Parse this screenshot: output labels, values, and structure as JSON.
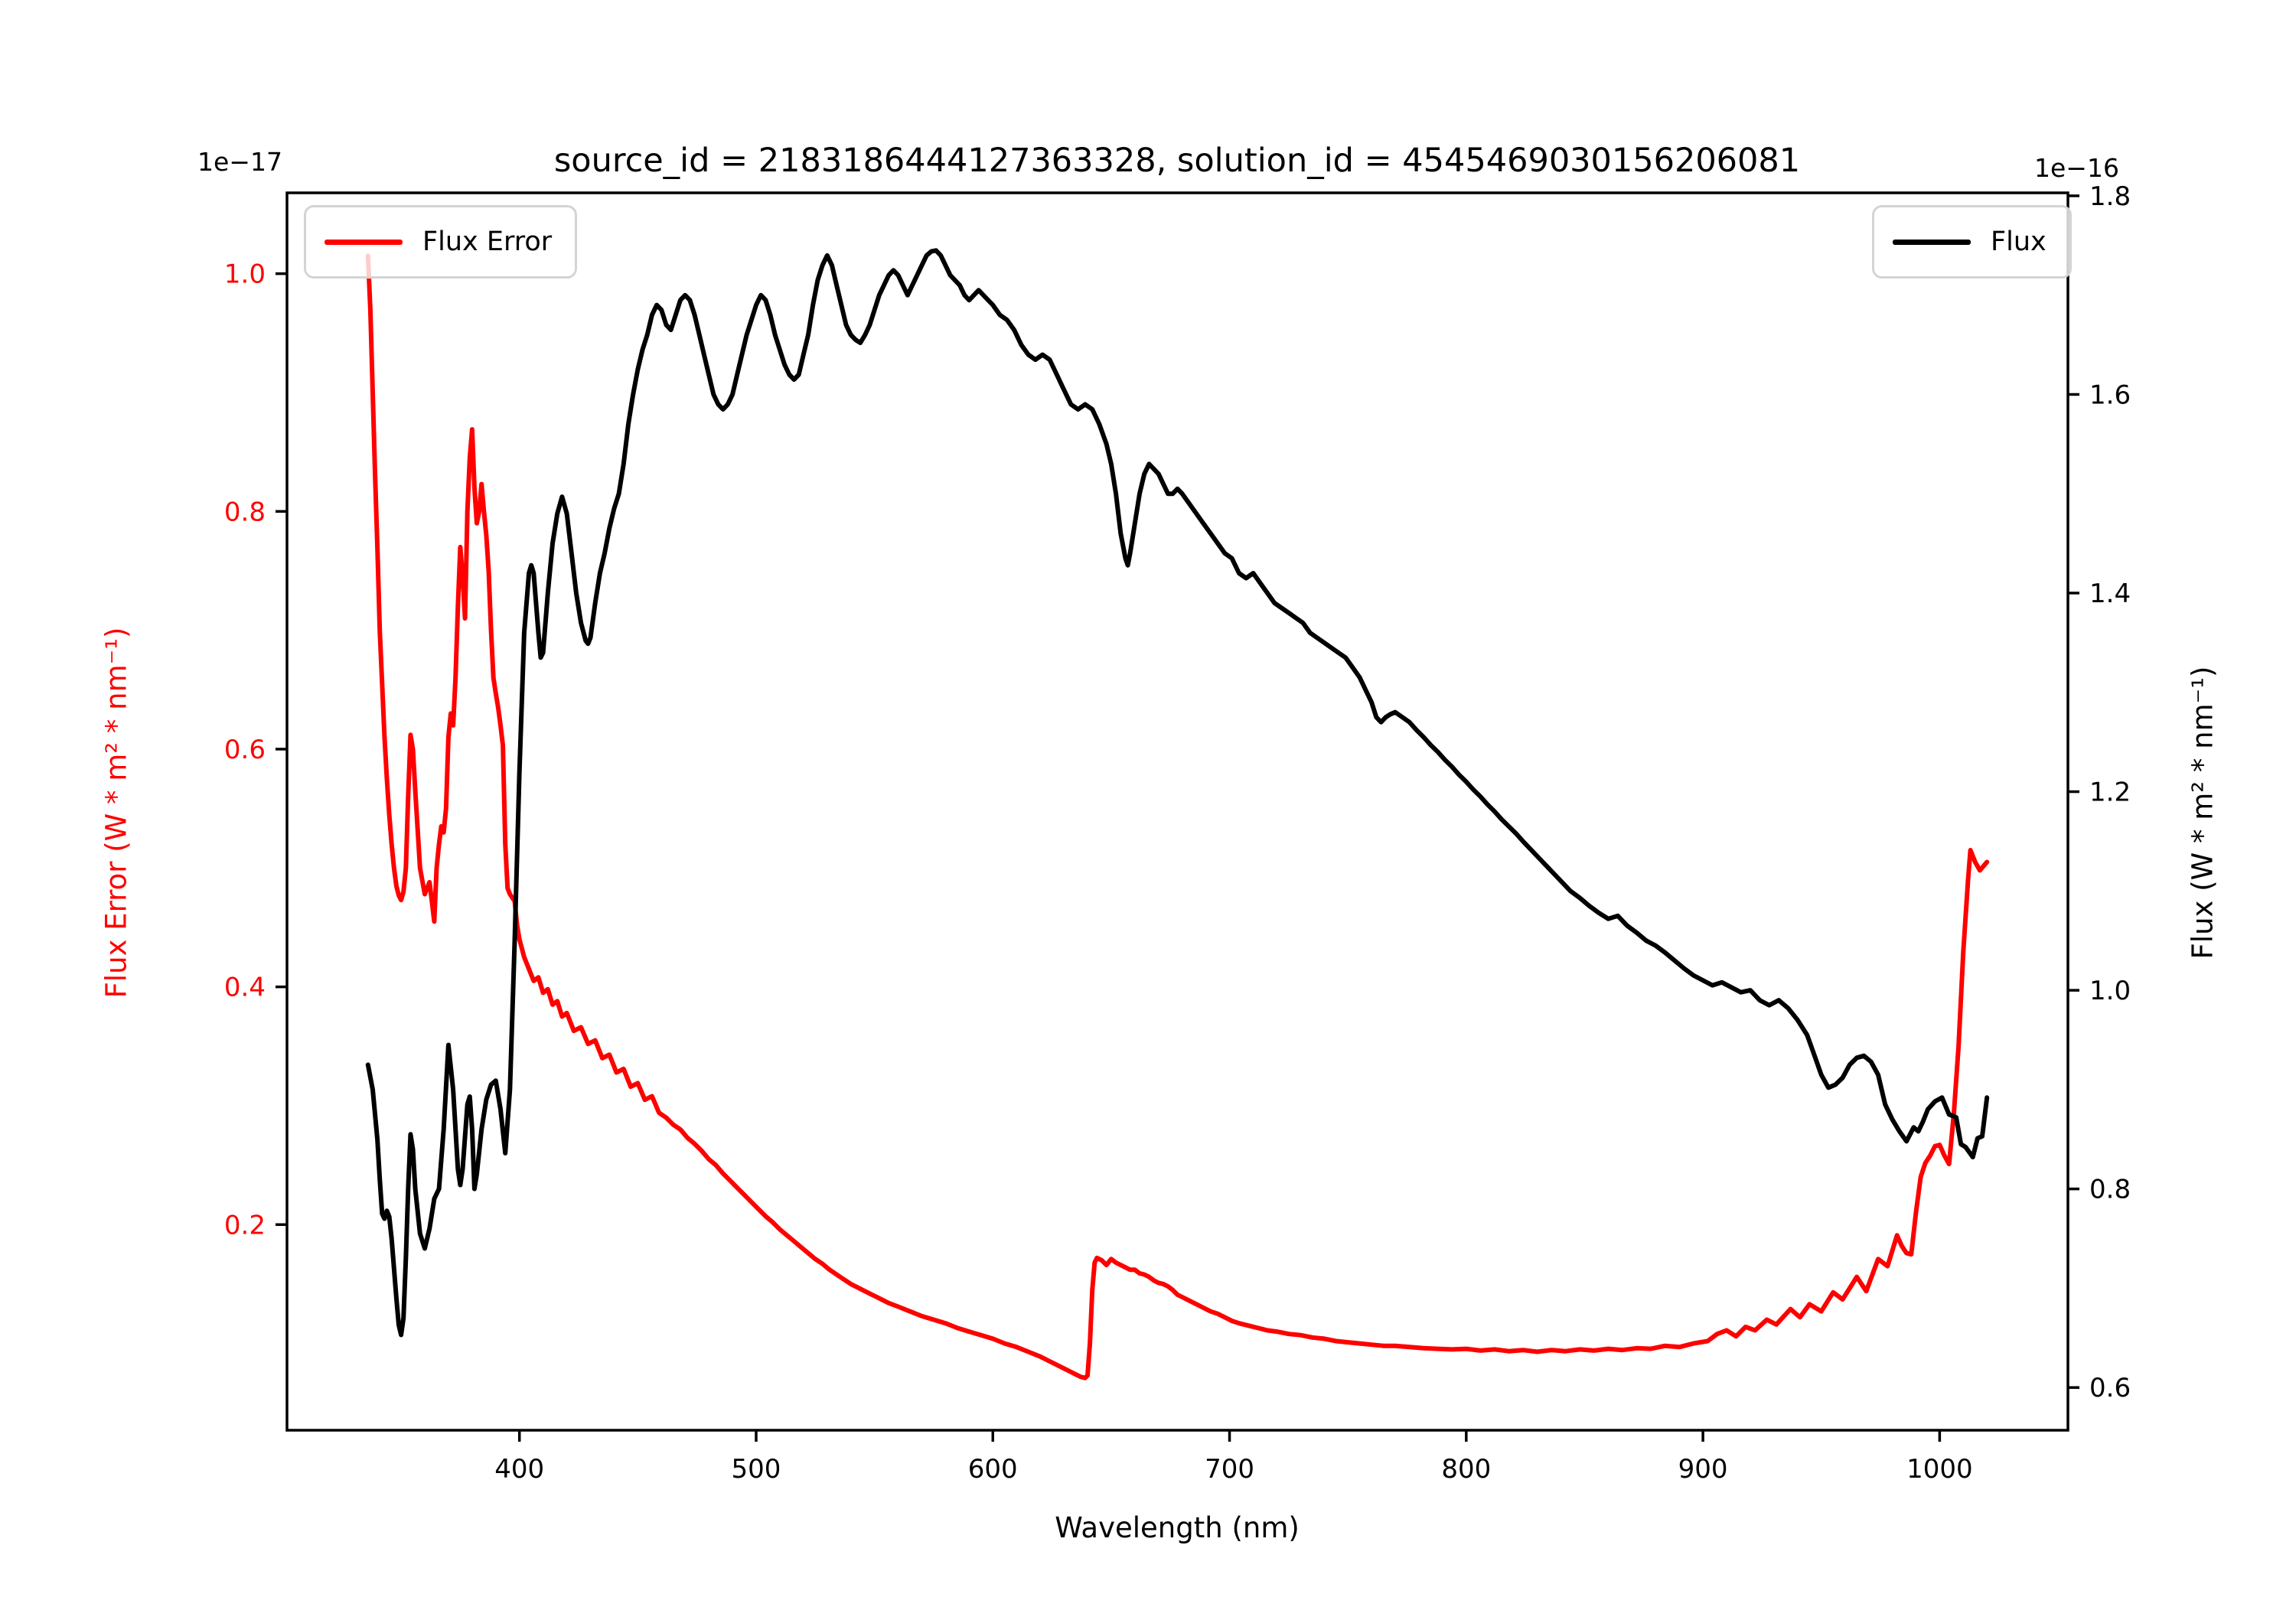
{
  "title": "source_id = 2183186444127363328, solution_id = 4545469030156206081",
  "offset_text_left": "1e−17",
  "offset_text_right": "1e−16",
  "xlabel": "Wavelength (nm)",
  "ylabel_left": "Flux Error (W * m² * nm⁻¹)",
  "ylabel_right": "Flux (W * m² * nm⁻¹)",
  "legend_left": {
    "label": "Flux Error",
    "color": "#ff0000"
  },
  "legend_right": {
    "label": "Flux",
    "color": "#000000"
  },
  "chart_data": {
    "type": "line",
    "title": "source_id = 2183186444127363328, solution_id = 4545469030156206081",
    "xlabel": "Wavelength (nm)",
    "grid": false,
    "xlim": [
      301.8,
      1054.2
    ],
    "xticks": [
      400,
      500,
      600,
      700,
      800,
      900,
      1000
    ],
    "legend_positions": [
      "upper left",
      "upper right"
    ],
    "series": [
      {
        "name": "Flux Error",
        "color": "#ff0000",
        "axis": "left",
        "unit_scale": "1e-17",
        "ylabel": "Flux Error (W * m² * nm⁻¹)",
        "ylim": [
          0.027,
          1.068
        ],
        "yticks": [
          0.2,
          0.4,
          0.6,
          0.8,
          1.0
        ],
        "x": [
          336,
          337,
          338,
          339,
          340,
          341,
          342,
          343,
          344,
          345,
          346,
          347,
          348,
          349,
          350,
          351,
          352,
          353,
          354,
          355,
          356,
          358,
          360,
          362,
          363,
          364,
          365,
          366,
          367,
          368,
          369,
          370,
          371,
          372,
          373,
          374,
          375,
          376,
          377,
          378,
          379,
          380,
          381,
          382,
          383,
          384,
          385,
          386,
          387,
          388,
          389,
          390,
          391,
          392,
          393,
          394,
          395,
          396,
          397,
          398,
          399,
          400,
          402,
          404,
          406,
          408,
          410,
          412,
          414,
          416,
          418,
          420,
          423,
          426,
          429,
          432,
          435,
          438,
          441,
          444,
          447,
          450,
          453,
          456,
          459,
          462,
          465,
          468,
          471,
          474,
          477,
          480,
          483,
          486,
          489,
          492,
          495,
          498,
          501,
          504,
          507,
          510,
          513,
          516,
          519,
          522,
          525,
          528,
          531,
          534,
          537,
          540,
          544,
          548,
          552,
          556,
          560,
          565,
          570,
          575,
          580,
          585,
          590,
          595,
          600,
          605,
          610,
          615,
          620,
          625,
          630,
          634,
          637,
          639,
          640,
          641,
          642,
          643,
          644,
          646,
          648,
          650,
          652,
          654,
          656,
          658,
          660,
          662,
          664,
          666,
          668,
          670,
          672,
          674,
          676,
          678,
          680,
          683,
          686,
          689,
          692,
          695,
          698,
          701,
          704,
          708,
          712,
          716,
          720,
          725,
          730,
          735,
          740,
          745,
          750,
          755,
          760,
          765,
          770,
          776,
          782,
          788,
          794,
          800,
          806,
          812,
          818,
          824,
          830,
          836,
          842,
          848,
          854,
          860,
          866,
          872,
          878,
          884,
          890,
          896,
          902,
          906,
          910,
          914,
          918,
          922,
          927,
          931,
          937,
          941,
          945,
          950,
          955,
          959,
          965,
          969,
          974,
          978,
          982,
          984,
          986,
          988,
          990,
          992,
          994,
          996,
          998,
          1000,
          1002,
          1004,
          1006,
          1008,
          1010,
          1012,
          1013,
          1015,
          1017,
          1020
        ],
        "y": [
          1.015,
          0.97,
          0.9,
          0.83,
          0.77,
          0.7,
          0.655,
          0.61,
          0.575,
          0.545,
          0.52,
          0.5,
          0.485,
          0.477,
          0.473,
          0.48,
          0.5,
          0.56,
          0.612,
          0.6,
          0.565,
          0.5,
          0.478,
          0.488,
          0.472,
          0.455,
          0.5,
          0.52,
          0.535,
          0.53,
          0.55,
          0.61,
          0.63,
          0.62,
          0.66,
          0.72,
          0.77,
          0.745,
          0.71,
          0.8,
          0.845,
          0.869,
          0.82,
          0.79,
          0.8,
          0.823,
          0.8,
          0.78,
          0.75,
          0.7,
          0.66,
          0.647,
          0.635,
          0.62,
          0.603,
          0.52,
          0.483,
          0.478,
          0.475,
          0.472,
          0.452,
          0.44,
          0.425,
          0.415,
          0.405,
          0.408,
          0.395,
          0.398,
          0.385,
          0.388,
          0.375,
          0.378,
          0.363,
          0.366,
          0.352,
          0.355,
          0.34,
          0.343,
          0.328,
          0.331,
          0.316,
          0.319,
          0.305,
          0.308,
          0.294,
          0.29,
          0.284,
          0.28,
          0.273,
          0.268,
          0.262,
          0.255,
          0.25,
          0.243,
          0.237,
          0.231,
          0.225,
          0.219,
          0.213,
          0.207,
          0.202,
          0.196,
          0.191,
          0.186,
          0.181,
          0.176,
          0.171,
          0.167,
          0.162,
          0.158,
          0.154,
          0.15,
          0.146,
          0.142,
          0.138,
          0.134,
          0.131,
          0.127,
          0.123,
          0.12,
          0.117,
          0.113,
          0.11,
          0.107,
          0.104,
          0.1,
          0.097,
          0.093,
          0.089,
          0.084,
          0.079,
          0.075,
          0.072,
          0.071,
          0.073,
          0.1,
          0.145,
          0.168,
          0.172,
          0.17,
          0.166,
          0.171,
          0.168,
          0.166,
          0.164,
          0.162,
          0.162,
          0.159,
          0.158,
          0.156,
          0.153,
          0.151,
          0.15,
          0.148,
          0.145,
          0.141,
          0.139,
          0.136,
          0.133,
          0.13,
          0.127,
          0.125,
          0.122,
          0.119,
          0.117,
          0.115,
          0.113,
          0.111,
          0.11,
          0.108,
          0.107,
          0.105,
          0.104,
          0.102,
          0.101,
          0.1,
          0.099,
          0.098,
          0.098,
          0.097,
          0.096,
          0.0955,
          0.095,
          0.0955,
          0.094,
          0.095,
          0.0935,
          0.0945,
          0.093,
          0.0945,
          0.0935,
          0.095,
          0.094,
          0.0955,
          0.0945,
          0.096,
          0.0955,
          0.098,
          0.097,
          0.1,
          0.102,
          0.108,
          0.111,
          0.106,
          0.114,
          0.111,
          0.12,
          0.116,
          0.129,
          0.122,
          0.133,
          0.127,
          0.143,
          0.137,
          0.156,
          0.144,
          0.171,
          0.165,
          0.191,
          0.182,
          0.176,
          0.175,
          0.21,
          0.24,
          0.252,
          0.258,
          0.266,
          0.267,
          0.258,
          0.251,
          0.293,
          0.35,
          0.43,
          0.49,
          0.515,
          0.505,
          0.498,
          0.505
        ]
      },
      {
        "name": "Flux",
        "color": "#000000",
        "axis": "right",
        "unit_scale": "1e-16",
        "ylabel": "Flux (W * m² * nm⁻¹)",
        "ylim": [
          0.557,
          1.803
        ],
        "yticks": [
          0.6,
          0.8,
          1.0,
          1.2,
          1.4,
          1.6,
          1.8
        ],
        "x": [
          336,
          338,
          340,
          341,
          342,
          343,
          344,
          345,
          346,
          347,
          348,
          349,
          350,
          351,
          352,
          353,
          354,
          355,
          356,
          358,
          360,
          362,
          364,
          366,
          368,
          370,
          372,
          374,
          375,
          376,
          378,
          379,
          380,
          381,
          382,
          384,
          386,
          388,
          390,
          392,
          394,
          396,
          398,
          400,
          402,
          404,
          405,
          406,
          408,
          409,
          410,
          412,
          414,
          416,
          418,
          420,
          422,
          424,
          426,
          428,
          429,
          430,
          432,
          434,
          436,
          438,
          440,
          442,
          444,
          446,
          448,
          450,
          452,
          454,
          456,
          458,
          460,
          462,
          464,
          466,
          468,
          470,
          472,
          474,
          476,
          478,
          480,
          482,
          484,
          486,
          488,
          490,
          492,
          494,
          496,
          498,
          500,
          502,
          504,
          506,
          508,
          510,
          512,
          514,
          516,
          518,
          520,
          522,
          524,
          526,
          528,
          530,
          532,
          534,
          536,
          538,
          540,
          542,
          544,
          546,
          548,
          550,
          552,
          554,
          556,
          558,
          560,
          562,
          564,
          566,
          568,
          570,
          572,
          574,
          576,
          578,
          580,
          582,
          584,
          586,
          588,
          590,
          592,
          594,
          596,
          598,
          600,
          603,
          606,
          609,
          612,
          615,
          618,
          621,
          624,
          627,
          630,
          633,
          636,
          639,
          642,
          645,
          648,
          650,
          652,
          654,
          656,
          657,
          658,
          660,
          662,
          664,
          666,
          668,
          670,
          672,
          674,
          676,
          678,
          680,
          683,
          686,
          689,
          692,
          695,
          698,
          701,
          704,
          707,
          710,
          713,
          716,
          719,
          722,
          725,
          728,
          731,
          734,
          737,
          740,
          743,
          746,
          749,
          752,
          755,
          758,
          760,
          762,
          764,
          766,
          768,
          770,
          773,
          776,
          779,
          782,
          785,
          788,
          791,
          794,
          797,
          800,
          803,
          806,
          809,
          812,
          815,
          818,
          821,
          824,
          828,
          832,
          836,
          840,
          844,
          848,
          852,
          856,
          860,
          864,
          868,
          872,
          876,
          880,
          884,
          888,
          892,
          896,
          900,
          904,
          908,
          912,
          916,
          920,
          924,
          928,
          932,
          936,
          940,
          944,
          947,
          950,
          953,
          956,
          959,
          962,
          965,
          968,
          971,
          974,
          977,
          980,
          983,
          986,
          989,
          991,
          993,
          995,
          998,
          1001,
          1004,
          1007,
          1009,
          1011,
          1014,
          1016,
          1018,
          1020
        ],
        "y": [
          0.925,
          0.9,
          0.85,
          0.81,
          0.775,
          0.77,
          0.778,
          0.772,
          0.75,
          0.72,
          0.69,
          0.663,
          0.653,
          0.67,
          0.73,
          0.8,
          0.855,
          0.84,
          0.8,
          0.755,
          0.74,
          0.76,
          0.79,
          0.8,
          0.86,
          0.945,
          0.9,
          0.82,
          0.804,
          0.82,
          0.885,
          0.893,
          0.86,
          0.8,
          0.815,
          0.86,
          0.89,
          0.905,
          0.909,
          0.88,
          0.836,
          0.9,
          1.05,
          1.22,
          1.36,
          1.42,
          1.428,
          1.42,
          1.36,
          1.335,
          1.34,
          1.4,
          1.45,
          1.48,
          1.497,
          1.48,
          1.44,
          1.4,
          1.37,
          1.352,
          1.349,
          1.355,
          1.39,
          1.42,
          1.44,
          1.465,
          1.485,
          1.5,
          1.53,
          1.57,
          1.6,
          1.625,
          1.645,
          1.66,
          1.68,
          1.69,
          1.685,
          1.67,
          1.665,
          1.68,
          1.695,
          1.7,
          1.695,
          1.68,
          1.66,
          1.64,
          1.62,
          1.6,
          1.59,
          1.585,
          1.59,
          1.6,
          1.62,
          1.64,
          1.66,
          1.675,
          1.69,
          1.7,
          1.695,
          1.68,
          1.66,
          1.645,
          1.63,
          1.62,
          1.615,
          1.62,
          1.64,
          1.66,
          1.69,
          1.715,
          1.73,
          1.74,
          1.73,
          1.71,
          1.69,
          1.67,
          1.66,
          1.655,
          1.652,
          1.66,
          1.67,
          1.685,
          1.7,
          1.71,
          1.72,
          1.725,
          1.72,
          1.71,
          1.7,
          1.71,
          1.72,
          1.73,
          1.74,
          1.744,
          1.745,
          1.74,
          1.73,
          1.72,
          1.715,
          1.71,
          1.7,
          1.695,
          1.7,
          1.705,
          1.7,
          1.695,
          1.69,
          1.68,
          1.675,
          1.665,
          1.65,
          1.64,
          1.635,
          1.64,
          1.635,
          1.62,
          1.605,
          1.59,
          1.585,
          1.59,
          1.585,
          1.57,
          1.55,
          1.53,
          1.5,
          1.46,
          1.435,
          1.428,
          1.44,
          1.47,
          1.5,
          1.52,
          1.53,
          1.525,
          1.52,
          1.51,
          1.5,
          1.5,
          1.505,
          1.5,
          1.49,
          1.48,
          1.47,
          1.46,
          1.45,
          1.44,
          1.435,
          1.42,
          1.415,
          1.42,
          1.41,
          1.4,
          1.39,
          1.385,
          1.38,
          1.375,
          1.37,
          1.36,
          1.355,
          1.35,
          1.345,
          1.34,
          1.335,
          1.325,
          1.315,
          1.3,
          1.29,
          1.275,
          1.27,
          1.275,
          1.278,
          1.28,
          1.275,
          1.27,
          1.262,
          1.255,
          1.247,
          1.24,
          1.232,
          1.225,
          1.217,
          1.21,
          1.202,
          1.195,
          1.187,
          1.18,
          1.172,
          1.165,
          1.158,
          1.15,
          1.14,
          1.13,
          1.12,
          1.11,
          1.1,
          1.093,
          1.085,
          1.078,
          1.072,
          1.075,
          1.065,
          1.058,
          1.05,
          1.045,
          1.038,
          1.03,
          1.022,
          1.015,
          1.01,
          1.005,
          1.008,
          1.003,
          0.998,
          1.0,
          0.99,
          0.985,
          0.99,
          0.982,
          0.97,
          0.955,
          0.935,
          0.915,
          0.902,
          0.905,
          0.912,
          0.925,
          0.932,
          0.934,
          0.928,
          0.915,
          0.885,
          0.87,
          0.858,
          0.848,
          0.862,
          0.858,
          0.868,
          0.88,
          0.888,
          0.892,
          0.875,
          0.872,
          0.845,
          0.842,
          0.832,
          0.851,
          0.853,
          0.892
        ]
      }
    ]
  }
}
